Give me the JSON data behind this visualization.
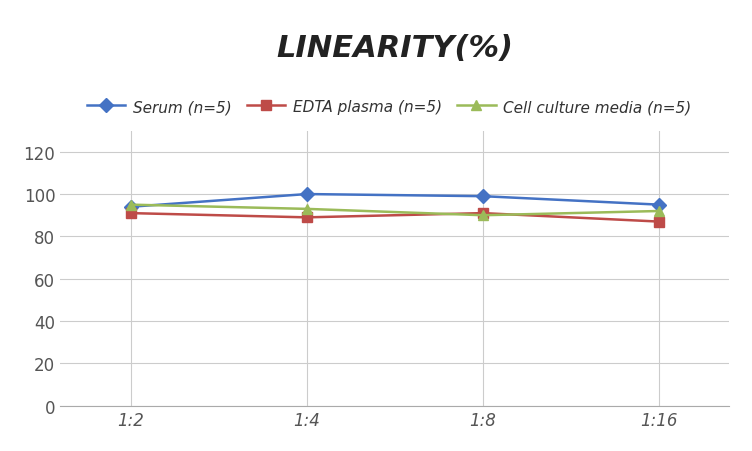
{
  "title": "LINEARITY(%)",
  "x_labels": [
    "1:2",
    "1:4",
    "1:8",
    "1:16"
  ],
  "x_positions": [
    0,
    1,
    2,
    3
  ],
  "series": [
    {
      "label": "Serum (n=5)",
      "values": [
        94,
        100,
        99,
        95
      ],
      "color": "#4472C4",
      "marker": "D",
      "markersize": 7,
      "linewidth": 1.8
    },
    {
      "label": "EDTA plasma (n=5)",
      "values": [
        91,
        89,
        91,
        87
      ],
      "color": "#BE4B48",
      "marker": "s",
      "markersize": 7,
      "linewidth": 1.8
    },
    {
      "label": "Cell culture media (n=5)",
      "values": [
        95,
        93,
        90,
        92
      ],
      "color": "#9BBB59",
      "marker": "^",
      "markersize": 7,
      "linewidth": 1.8
    }
  ],
  "ylim": [
    0,
    130
  ],
  "yticks": [
    0,
    20,
    40,
    60,
    80,
    100,
    120
  ],
  "background_color": "#FFFFFF",
  "grid_color": "#CCCCCC",
  "title_fontsize": 22,
  "legend_fontsize": 11,
  "tick_fontsize": 12
}
